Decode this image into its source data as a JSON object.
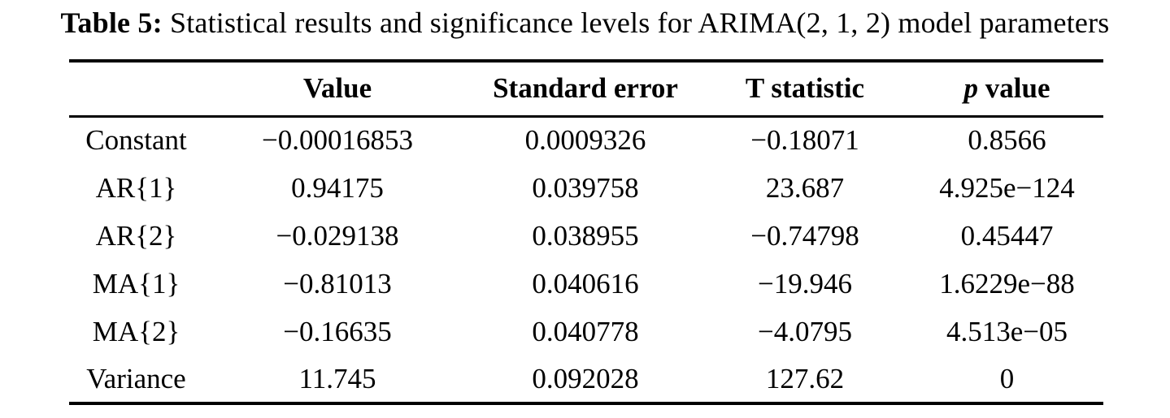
{
  "caption": {
    "label": "Table 5:",
    "text": "Statistical results and significance levels for ARIMA(2, 1, 2) model parameters"
  },
  "table": {
    "header": {
      "param": "",
      "value": "Value",
      "standard_error": "Standard error",
      "t_statistic": "T statistic",
      "p_italic": "p",
      "p_rest": "value"
    },
    "rows": [
      [
        "Constant",
        "−0.00016853",
        "0.0009326",
        "−0.18071",
        "0.8566"
      ],
      [
        "AR{1}",
        "0.94175",
        "0.039758",
        "23.687",
        "4.925e−124"
      ],
      [
        "AR{2}",
        "−0.029138",
        "0.038955",
        "−0.74798",
        "0.45447"
      ],
      [
        "MA{1}",
        "−0.81013",
        "0.040616",
        "−19.946",
        "1.6229e−88"
      ],
      [
        "MA{2}",
        "−0.16635",
        "0.040778",
        "−4.0795",
        "4.513e−05"
      ],
      [
        "Variance",
        "11.745",
        "0.092028",
        "127.62",
        "0"
      ]
    ]
  },
  "colors": {
    "text": "#000000",
    "background": "#ffffff",
    "rule": "#000000"
  }
}
